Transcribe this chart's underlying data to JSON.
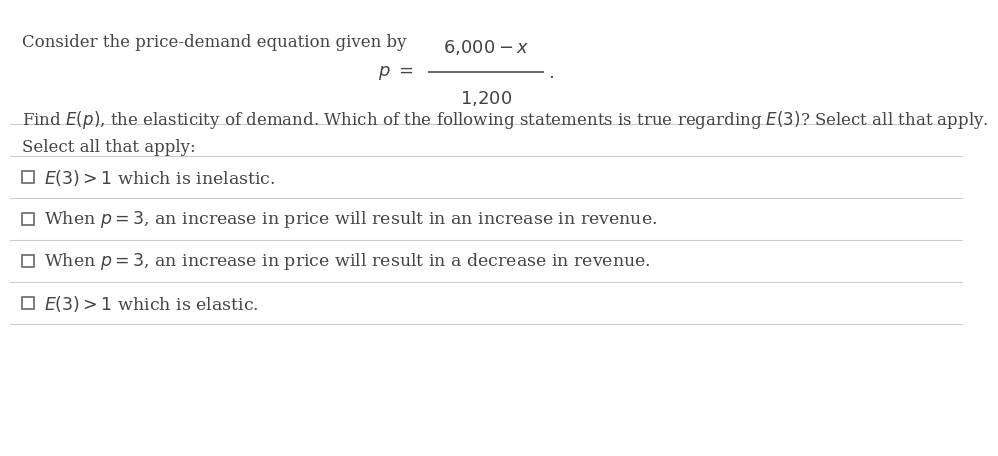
{
  "bg_color": "#ffffff",
  "text_color": "#444444",
  "line_color": "#cccccc",
  "intro_text": "Consider the price-demand equation given by",
  "select_label": "Select all that apply:",
  "options_latex": [
    "$E(3) > 1$ which is inelastic.",
    "When $p = 3$, an increase in price will result in an increase in revenue.",
    "When $p = 3$, an increase in price will result in a decrease in revenue.",
    "$E(3) > 1$ which is elastic."
  ],
  "find_line": "Find $E(p)$, the elasticity of demand. Which of the following statements is true regarding $E(3)$? Select all that apply.",
  "eq_numerator": "$6,000 - x$",
  "eq_denominator": "$1,200$",
  "eq_p": "$p =$",
  "eq_period": ".",
  "font_size_main": 12,
  "font_size_eq": 13,
  "font_size_options": 12.5
}
